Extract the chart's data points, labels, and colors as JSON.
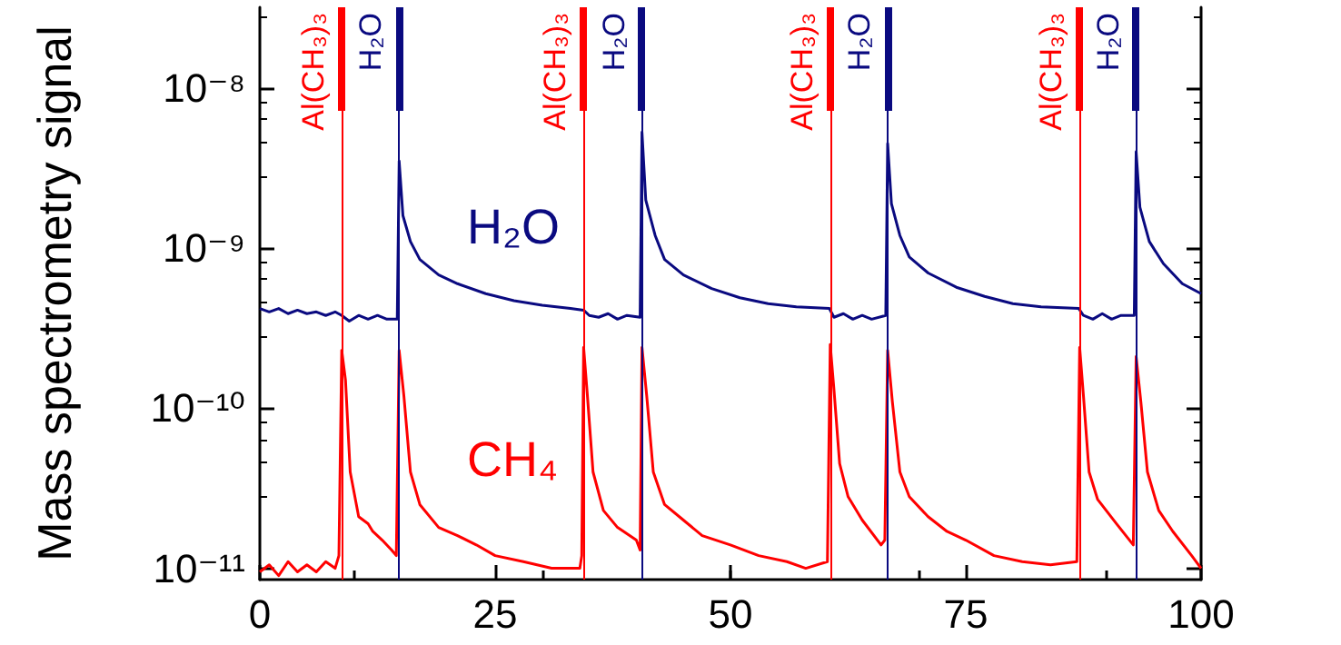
{
  "chart_data": {
    "type": "line",
    "ylabel": "Mass spectrometry signal",
    "log": true,
    "grid": false,
    "xlim": [
      0,
      100
    ],
    "xticks": [
      0,
      25,
      50,
      75,
      100
    ],
    "ylim": [
      8.5e-12,
      3.2e-08
    ],
    "yticks": [
      {
        "value": 1e-11,
        "label": "10⁻¹¹"
      },
      {
        "value": 1e-10,
        "label": "10⁻¹⁰"
      },
      {
        "value": 1e-09,
        "label": "10⁻⁹"
      },
      {
        "value": 1e-08,
        "label": "10⁻⁸"
      }
    ],
    "series": [
      {
        "name": "H₂O",
        "color": "#0a0a80",
        "x": [
          0,
          1,
          2,
          3,
          4,
          5,
          6,
          7,
          8,
          8.7,
          9.5,
          10.5,
          11.5,
          12.5,
          13.5,
          14.6,
          14.8,
          15.2,
          16,
          17,
          19,
          21,
          24,
          27,
          30,
          33,
          34.4,
          35,
          36,
          37,
          38,
          39,
          40.4,
          40.6,
          41,
          42,
          43,
          45,
          48,
          51,
          54,
          57,
          60.5,
          61,
          62,
          63,
          64,
          65,
          66.5,
          66.7,
          67.1,
          68,
          69,
          71,
          74,
          77,
          80,
          83,
          87,
          87.5,
          88.5,
          89.5,
          90.5,
          91.5,
          92.9,
          93.1,
          93.5,
          94.5,
          96,
          98,
          100
        ],
        "values": [
          4.2e-10,
          4e-10,
          4.2e-10,
          3.9e-10,
          4.1e-10,
          3.9e-10,
          4e-10,
          3.8e-10,
          4e-10,
          3.8e-10,
          3.5e-10,
          3.8e-10,
          3.6e-10,
          3.8e-10,
          3.6e-10,
          3.6e-10,
          3.5e-09,
          1.6e-09,
          1.1e-09,
          8.5e-10,
          6.8e-10,
          6e-10,
          5.2e-10,
          4.7e-10,
          4.4e-10,
          4.2e-10,
          4.1e-10,
          3.8e-10,
          3.7e-10,
          3.9e-10,
          3.6e-10,
          3.8e-10,
          3.7e-10,
          5.3e-09,
          2e-09,
          1.2e-09,
          8.5e-10,
          6.8e-10,
          5.6e-10,
          4.9e-10,
          4.5e-10,
          4.3e-10,
          4.2e-10,
          3.7e-10,
          3.9e-10,
          3.6e-10,
          3.8e-10,
          3.6e-10,
          3.8e-10,
          4.5e-09,
          1.9e-09,
          1.2e-09,
          8.8e-10,
          7e-10,
          5.7e-10,
          5e-10,
          4.5e-10,
          4.3e-10,
          4.2e-10,
          3.8e-10,
          3.6e-10,
          3.9e-10,
          3.6e-10,
          3.8e-10,
          3.8e-10,
          4e-09,
          1.8e-09,
          1.1e-09,
          8e-10,
          6e-10,
          5.2e-10
        ]
      },
      {
        "name": "CH₄",
        "color": "#ff0000",
        "x": [
          0,
          1,
          2,
          3,
          4,
          5,
          6,
          7,
          8,
          8.4,
          8.7,
          9.1,
          9.6,
          10.5,
          11.5,
          12,
          13,
          14,
          14.5,
          14.8,
          15.3,
          16,
          17,
          19,
          21,
          23,
          25,
          28,
          31,
          34,
          34.2,
          34.4,
          34.8,
          35.4,
          36.5,
          38,
          40,
          40.4,
          40.6,
          41.1,
          41.8,
          43,
          45,
          47,
          50,
          53,
          56,
          58,
          60.3,
          60.6,
          61,
          61.6,
          62.5,
          64,
          66,
          66.4,
          66.7,
          67.2,
          68,
          69,
          71,
          73,
          75,
          78,
          81,
          84,
          86.8,
          87.1,
          87.5,
          88.1,
          89,
          91,
          92.8,
          93.1,
          93.6,
          94.3,
          95.5,
          97,
          99,
          100
        ],
        "values": [
          9.5e-12,
          1.05e-11,
          9e-12,
          1.1e-11,
          9.5e-12,
          1.05e-11,
          9.5e-12,
          1.1e-11,
          1e-11,
          1.2e-11,
          2.3e-10,
          1.5e-10,
          4e-11,
          2.1e-11,
          1.9e-11,
          1.7e-11,
          1.5e-11,
          1.3e-11,
          1.2e-11,
          2.3e-10,
          1.2e-10,
          4e-11,
          2.5e-11,
          1.8e-11,
          1.6e-11,
          1.4e-11,
          1.2e-11,
          1.1e-11,
          1e-11,
          1e-11,
          1.2e-11,
          2.4e-10,
          1.2e-10,
          4e-11,
          2.3e-11,
          1.8e-11,
          1.5e-11,
          1.3e-11,
          2.4e-10,
          1.2e-10,
          4e-11,
          2.5e-11,
          2e-11,
          1.6e-11,
          1.4e-11,
          1.2e-11,
          1.1e-11,
          1e-11,
          1.1e-11,
          2.5e-10,
          1.3e-10,
          4.5e-11,
          2.8e-11,
          2e-11,
          1.4e-11,
          1.5e-11,
          2.3e-10,
          1.1e-10,
          4e-11,
          2.8e-11,
          2.1e-11,
          1.7e-11,
          1.5e-11,
          1.2e-11,
          1.1e-11,
          1.05e-11,
          1.1e-11,
          2.4e-10,
          1.2e-10,
          4e-11,
          2.7e-11,
          1.9e-11,
          1.4e-11,
          2.1e-10,
          1.1e-10,
          4e-11,
          2.3e-11,
          1.7e-11,
          1.2e-11,
          1e-11
        ]
      }
    ],
    "ref_lines": [
      {
        "axis": "x",
        "value": 8.7,
        "label": "Al(CH₃)₃",
        "color": "#ff0000"
      },
      {
        "axis": "x",
        "value": 14.8,
        "label": "H₂O",
        "color": "#0a0a80"
      },
      {
        "axis": "x",
        "value": 34.4,
        "label": "Al(CH₃)₃",
        "color": "#ff0000"
      },
      {
        "axis": "x",
        "value": 40.6,
        "label": "H₂O",
        "color": "#0a0a80"
      },
      {
        "axis": "x",
        "value": 60.6,
        "label": "Al(CH₃)₃",
        "color": "#ff0000"
      },
      {
        "axis": "x",
        "value": 66.7,
        "label": "H₂O",
        "color": "#0a0a80"
      },
      {
        "axis": "x",
        "value": 87.1,
        "label": "Al(CH₃)₃",
        "color": "#ff0000"
      },
      {
        "axis": "x",
        "value": 93.1,
        "label": "H₂O",
        "color": "#0a0a80"
      }
    ]
  }
}
